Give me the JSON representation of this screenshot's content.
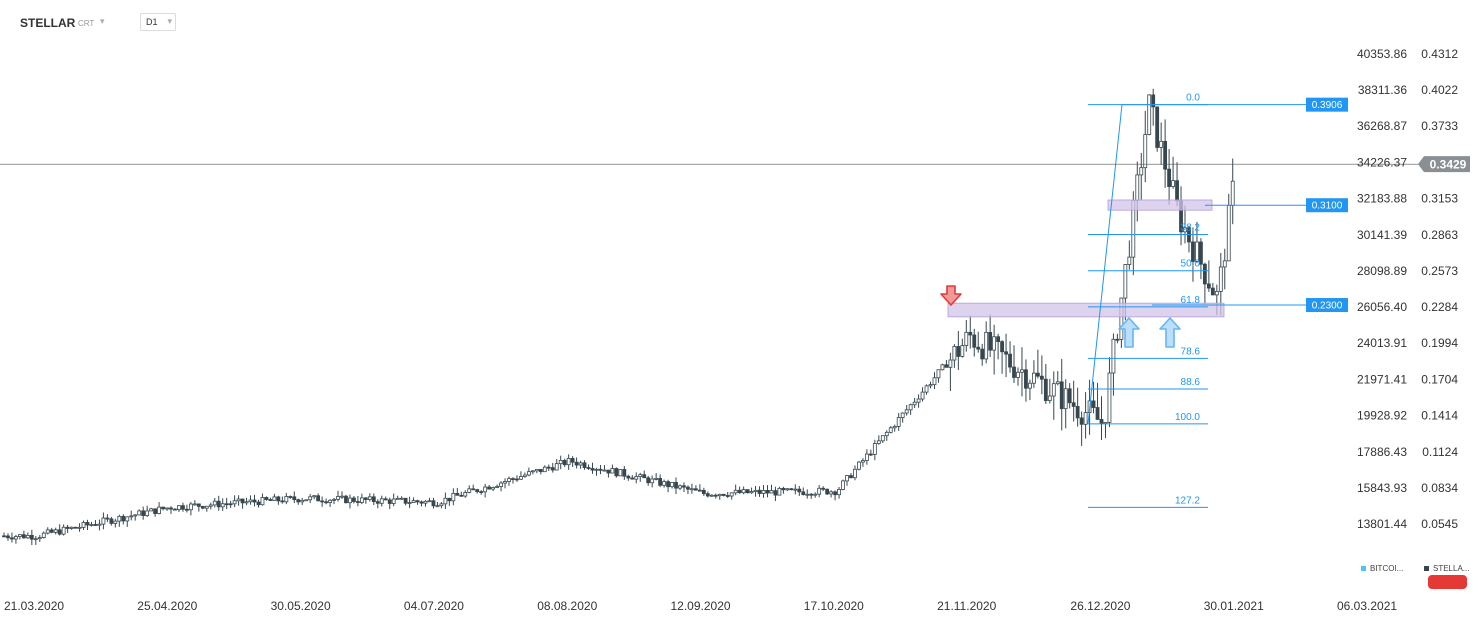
{
  "header": {
    "symbol": "STELLAR",
    "symbol_sub": "CRT",
    "caret": "▾",
    "timeframe": "D1"
  },
  "axes": {
    "left_ticks": [
      "40353.86",
      "38311.36",
      "36268.87",
      "34226.37",
      "32183.88",
      "30141.39",
      "28098.89",
      "26056.40",
      "24013.91",
      "21971.41",
      "19928.92",
      "17886.43",
      "15843.93",
      "13801.44"
    ],
    "right_ticks": [
      "0.4312",
      "0.4022",
      "0.3733",
      "0.3443",
      "0.3153",
      "0.2863",
      "0.2573",
      "0.2284",
      "0.1994",
      "0.1704",
      "0.1414",
      "0.1124",
      "0.0834",
      "0.0545"
    ],
    "dates": [
      "21.03.2020",
      "25.04.2020",
      "30.05.2020",
      "04.07.2020",
      "08.08.2020",
      "12.09.2020",
      "17.10.2020",
      "21.11.2020",
      "26.12.2020",
      "30.01.2021",
      "06.03.2021"
    ]
  },
  "current_price": "0.3429",
  "level_tags": [
    "0.3906",
    "0.3100",
    "0.2300"
  ],
  "fib_levels": [
    {
      "label": "0.0",
      "value": 0.3906
    },
    {
      "label": "38.2",
      "value": 0.2865
    },
    {
      "label": "50.0",
      "value": 0.2575
    },
    {
      "label": "61.8",
      "value": 0.2285
    },
    {
      "label": "78.6",
      "value": 0.1872
    },
    {
      "label": "88.6",
      "value": 0.1627
    },
    {
      "label": "100.0",
      "value": 0.1347
    },
    {
      "label": "127.2",
      "value": 0.0678
    }
  ],
  "zones": [
    {
      "name": "resistance-zone-upper",
      "low": 0.306,
      "high": 0.3142
    },
    {
      "name": "support-zone-lower",
      "low": 0.2205,
      "high": 0.2315
    }
  ],
  "legend": {
    "btc_label": "BITCOI...",
    "xlm_label": "STELLA...",
    "btc_color": "#4fc3f7",
    "xlm_color": "#37474f"
  },
  "colors": {
    "accent": "#2196f3",
    "candle": "#37474f",
    "zone": "#d1c4e9",
    "price_tag": "#8a8f94",
    "down_arrow": "#e53935",
    "up_arrow": "#64b5f6"
  },
  "chart_data": {
    "type": "candlestick",
    "title": "STELLAR",
    "timeframe": "D1",
    "y_range": [
      0.0545,
      0.4312
    ],
    "x_range": [
      "2020-03-21",
      "2021-03-06"
    ],
    "approx_close_path": [
      {
        "date": "2020-03-21",
        "value": 0.045
      },
      {
        "date": "2020-04-25",
        "value": 0.068
      },
      {
        "date": "2020-05-30",
        "value": 0.075
      },
      {
        "date": "2020-07-04",
        "value": 0.072
      },
      {
        "date": "2020-08-08",
        "value": 0.105
      },
      {
        "date": "2020-09-12",
        "value": 0.079
      },
      {
        "date": "2020-10-17",
        "value": 0.081
      },
      {
        "date": "2020-11-21",
        "value": 0.205
      },
      {
        "date": "2020-12-26",
        "value": 0.135
      },
      {
        "date": "2021-01-07",
        "value": 0.39
      },
      {
        "date": "2021-01-15",
        "value": 0.3
      },
      {
        "date": "2021-01-25",
        "value": 0.235
      },
      {
        "date": "2021-01-30",
        "value": 0.3429
      }
    ]
  }
}
